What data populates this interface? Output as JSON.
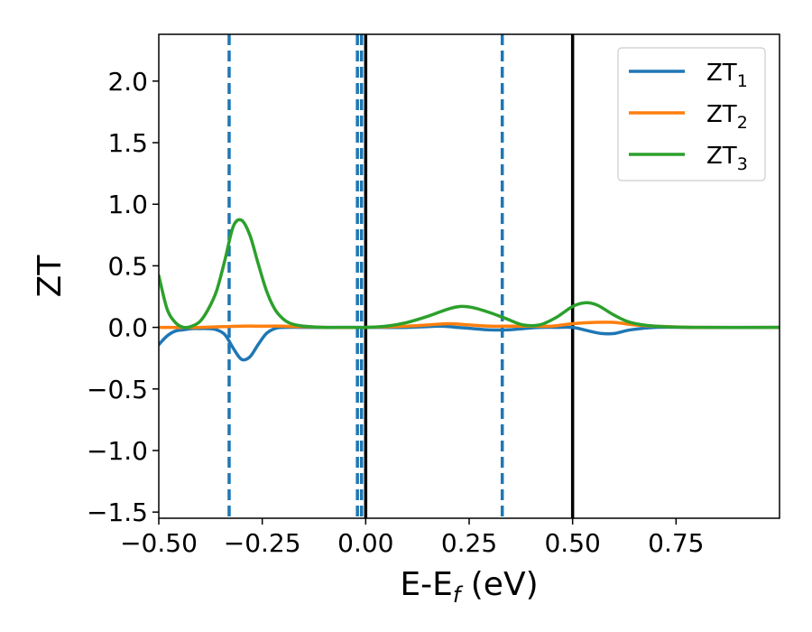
{
  "chart_data": {
    "type": "line",
    "title": "",
    "xlabel": {
      "main": "E-E",
      "sub": "f",
      "unit": " (eV)"
    },
    "ylabel": "ZT",
    "xlim": [
      -0.5,
      1.0
    ],
    "ylim": [
      -1.55,
      2.38
    ],
    "x_ticks": [
      -0.5,
      -0.25,
      0.0,
      0.25,
      0.5,
      0.75
    ],
    "x_tick_labels": [
      "−0.50",
      "−0.25",
      "0.00",
      "0.25",
      "0.50",
      "0.75"
    ],
    "y_ticks": [
      -1.5,
      -1.0,
      -0.5,
      0.0,
      0.5,
      1.0,
      1.5,
      2.0
    ],
    "y_tick_labels": [
      "−1.5",
      "−1.0",
      "−0.5",
      "0.0",
      "0.5",
      "1.0",
      "1.5",
      "2.0"
    ],
    "grid": false,
    "legend_position": "top-right",
    "series": [
      {
        "name": "ZT",
        "subscript": "1",
        "color": "#1f77b4",
        "x": [
          -0.5,
          -0.48,
          -0.46,
          -0.44,
          -0.42,
          -0.4,
          -0.38,
          -0.36,
          -0.34,
          -0.32,
          -0.3,
          -0.28,
          -0.26,
          -0.24,
          -0.22,
          -0.2,
          -0.15,
          -0.1,
          0.0,
          0.1,
          0.18,
          0.22,
          0.26,
          0.3,
          0.34,
          0.38,
          0.42,
          0.46,
          0.5,
          0.54,
          0.57,
          0.6,
          0.64,
          0.7,
          0.8,
          1.0
        ],
        "y": [
          -0.14,
          -0.07,
          -0.03,
          -0.02,
          -0.01,
          -0.01,
          -0.01,
          -0.02,
          -0.06,
          -0.17,
          -0.26,
          -0.24,
          -0.14,
          -0.05,
          -0.01,
          0.0,
          0.0,
          0.0,
          0.0,
          0.0,
          0.01,
          0.0,
          -0.01,
          -0.02,
          -0.02,
          -0.01,
          0.0,
          0.0,
          0.0,
          -0.03,
          -0.05,
          -0.05,
          -0.02,
          0.0,
          0.0,
          0.0
        ]
      },
      {
        "name": "ZT",
        "subscript": "2",
        "color": "#ff7f0e",
        "x": [
          -0.5,
          -0.4,
          -0.3,
          -0.25,
          -0.2,
          -0.1,
          0.0,
          0.1,
          0.15,
          0.2,
          0.25,
          0.3,
          0.35,
          0.4,
          0.45,
          0.5,
          0.55,
          0.6,
          0.65,
          0.7,
          0.8,
          1.0
        ],
        "y": [
          0.0,
          0.0,
          0.01,
          0.01,
          0.01,
          0.0,
          0.0,
          0.01,
          0.02,
          0.03,
          0.02,
          0.01,
          0.01,
          0.01,
          0.01,
          0.03,
          0.04,
          0.04,
          0.02,
          0.01,
          0.0,
          0.0
        ]
      },
      {
        "name": "ZT",
        "subscript": "3",
        "color": "#2ca02c",
        "x": [
          -0.5,
          -0.48,
          -0.46,
          -0.44,
          -0.42,
          -0.4,
          -0.38,
          -0.36,
          -0.34,
          -0.32,
          -0.3,
          -0.28,
          -0.26,
          -0.24,
          -0.22,
          -0.2,
          -0.18,
          -0.15,
          -0.1,
          -0.05,
          0.0,
          0.05,
          0.1,
          0.15,
          0.2,
          0.23,
          0.26,
          0.3,
          0.34,
          0.38,
          0.42,
          0.46,
          0.5,
          0.53,
          0.56,
          0.6,
          0.64,
          0.7,
          0.8,
          1.0
        ],
        "y": [
          0.42,
          0.15,
          0.04,
          0.0,
          0.01,
          0.05,
          0.15,
          0.3,
          0.55,
          0.82,
          0.87,
          0.75,
          0.52,
          0.3,
          0.15,
          0.07,
          0.03,
          0.01,
          0.0,
          0.0,
          0.0,
          0.01,
          0.04,
          0.09,
          0.15,
          0.17,
          0.16,
          0.12,
          0.07,
          0.02,
          0.02,
          0.08,
          0.17,
          0.2,
          0.18,
          0.1,
          0.04,
          0.01,
          0.0,
          0.0
        ]
      }
    ],
    "vlines": [
      {
        "x": -0.33,
        "style": "dashed",
        "color": "#1f77b4"
      },
      {
        "x": -0.02,
        "style": "dashed",
        "color": "#1f77b4"
      },
      {
        "x": -0.01,
        "style": "dashed",
        "color": "#1f77b4"
      },
      {
        "x": 0.33,
        "style": "dashed",
        "color": "#1f77b4"
      },
      {
        "x": 0.0,
        "style": "solid",
        "color": "#000000"
      },
      {
        "x": 0.5,
        "style": "solid",
        "color": "#000000"
      }
    ]
  }
}
